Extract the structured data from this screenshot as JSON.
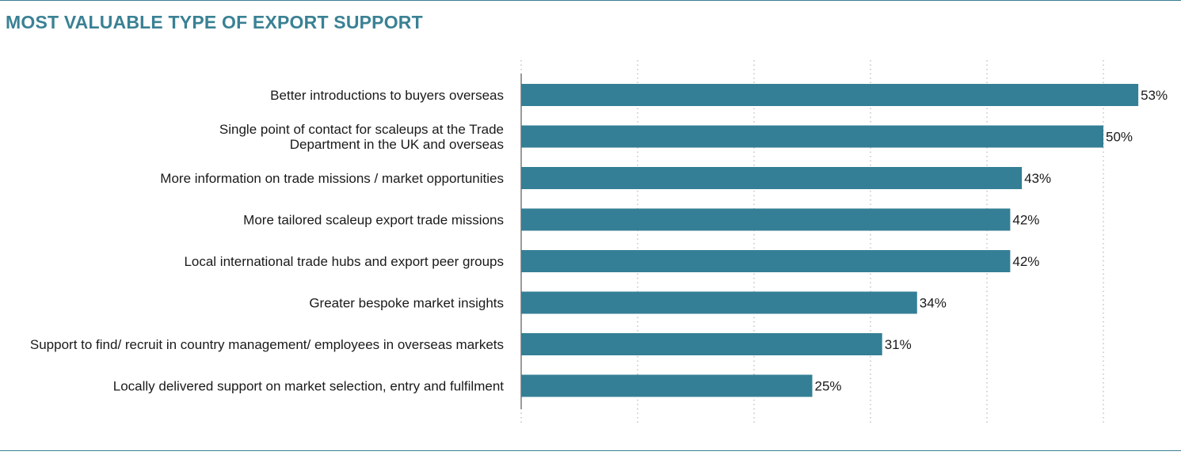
{
  "title": "MOST VALUABLE TYPE OF EXPORT SUPPORT",
  "colors": {
    "bar": "#347f95",
    "title": "#3a8194",
    "grid": "#b5b5b5",
    "axis": "#9a9a9a"
  },
  "chart_data": {
    "type": "bar",
    "orientation": "horizontal",
    "title": "MOST VALUABLE TYPE OF EXPORT SUPPORT",
    "categories": [
      [
        "Better introductions to buyers overseas"
      ],
      [
        "Single point of contact for scaleups at the Trade",
        "Department in the UK and overseas"
      ],
      [
        "More information on trade missions / market opportunities"
      ],
      [
        "More tailored scaleup export trade missions"
      ],
      [
        "Local international trade hubs and export peer groups"
      ],
      [
        "Greater bespoke market insights"
      ],
      [
        "Support to find/ recruit in country management/ employees in overseas markets"
      ],
      [
        "Locally delivered support on market selection, entry and fulfilment"
      ]
    ],
    "values": [
      53,
      50,
      43,
      42,
      42,
      34,
      31,
      25
    ],
    "value_labels": [
      "53%",
      "50%",
      "43%",
      "42%",
      "42%",
      "34%",
      "31%",
      "25%"
    ],
    "xlim": [
      0,
      60
    ],
    "grid": true,
    "legend": "none"
  }
}
